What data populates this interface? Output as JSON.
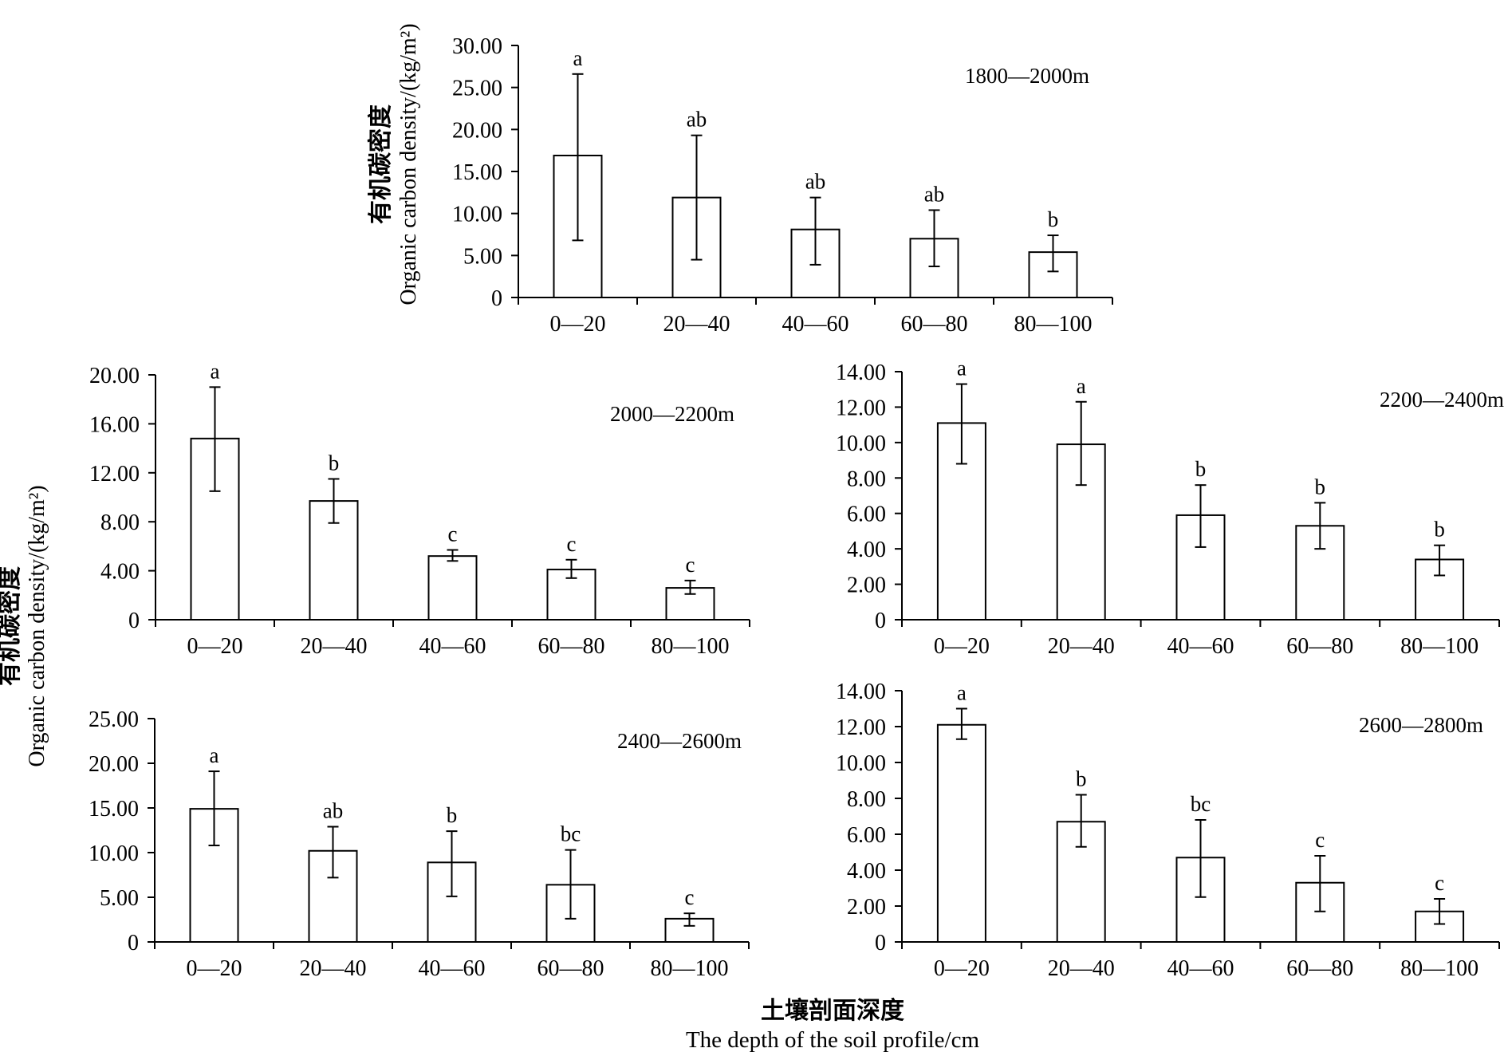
{
  "y_label_cn": "有机碳密度",
  "y_label_en": "Organic carbon density/(kg/m²)",
  "x_label_cn": "土壤剖面深度",
  "x_label_en": "The depth of the soil profile/cm",
  "colors": {
    "bar_fill": "#ffffff",
    "stroke": "#000000"
  },
  "chart_data": [
    {
      "type": "bar",
      "label": "1800—2000m",
      "categories": [
        "0—20",
        "20—40",
        "40—60",
        "60—80",
        "80—100"
      ],
      "values": [
        16.9,
        11.9,
        8.1,
        7.0,
        5.4
      ],
      "error_low": [
        6.8,
        4.5,
        3.9,
        3.7,
        3.1
      ],
      "error_high": [
        26.6,
        19.3,
        11.9,
        10.4,
        7.4
      ],
      "letters": [
        "a",
        "ab",
        "ab",
        "ab",
        "b"
      ],
      "ylim": [
        0,
        30
      ],
      "yticks": [
        0,
        5,
        10,
        15,
        20,
        25,
        30
      ],
      "ytick_labels": [
        "0",
        "5.00",
        "10.00",
        "15.00",
        "20.00",
        "25.00",
        "30.00"
      ]
    },
    {
      "type": "bar",
      "label": "2000—2200m",
      "categories": [
        "0—20",
        "20—40",
        "40—60",
        "60—80",
        "80—100"
      ],
      "values": [
        14.8,
        9.7,
        5.2,
        4.1,
        2.6
      ],
      "error_low": [
        10.5,
        7.9,
        4.8,
        3.4,
        2.1
      ],
      "error_high": [
        19.0,
        11.5,
        5.7,
        4.9,
        3.2
      ],
      "letters": [
        "a",
        "b",
        "c",
        "c",
        "c"
      ],
      "ylim": [
        0,
        20
      ],
      "yticks": [
        0,
        4,
        8,
        12,
        16,
        20
      ],
      "ytick_labels": [
        "0",
        "4.00",
        "8.00",
        "12.00",
        "16.00",
        "20.00"
      ]
    },
    {
      "type": "bar",
      "label": "2200—2400m",
      "categories": [
        "0—20",
        "20—40",
        "40—60",
        "60—80",
        "80—100"
      ],
      "values": [
        11.1,
        9.9,
        5.9,
        5.3,
        3.4
      ],
      "error_low": [
        8.8,
        7.6,
        4.1,
        4.0,
        2.5
      ],
      "error_high": [
        13.3,
        12.3,
        7.6,
        6.6,
        4.2
      ],
      "letters": [
        "a",
        "a",
        "b",
        "b",
        "b"
      ],
      "ylim": [
        0,
        14
      ],
      "yticks": [
        0,
        2,
        4,
        6,
        8,
        10,
        12,
        14
      ],
      "ytick_labels": [
        "0",
        "2.00",
        "4.00",
        "6.00",
        "8.00",
        "10.00",
        "12.00",
        "14.00"
      ]
    },
    {
      "type": "bar",
      "label": "2400—2600m",
      "categories": [
        "0—20",
        "20—40",
        "40—60",
        "60—80",
        "80—100"
      ],
      "values": [
        14.9,
        10.2,
        8.9,
        6.4,
        2.6
      ],
      "error_low": [
        10.8,
        7.2,
        5.1,
        2.6,
        1.8
      ],
      "error_high": [
        19.1,
        12.9,
        12.4,
        10.3,
        3.2
      ],
      "letters": [
        "a",
        "ab",
        "b",
        "bc",
        "c"
      ],
      "ylim": [
        0,
        25
      ],
      "yticks": [
        0,
        5,
        10,
        15,
        20,
        25
      ],
      "ytick_labels": [
        "0",
        "5.00",
        "10.00",
        "15.00",
        "20.00",
        "25.00"
      ]
    },
    {
      "type": "bar",
      "label": "2600—2800m",
      "categories": [
        "0—20",
        "20—40",
        "40—60",
        "60—80",
        "80—100"
      ],
      "values": [
        12.1,
        6.7,
        4.7,
        3.3,
        1.7
      ],
      "error_low": [
        11.3,
        5.3,
        2.5,
        1.7,
        1.0
      ],
      "error_high": [
        13.0,
        8.2,
        6.8,
        4.8,
        2.4
      ],
      "letters": [
        "a",
        "b",
        "bc",
        "c",
        "c"
      ],
      "ylim": [
        0,
        14
      ],
      "yticks": [
        0,
        2,
        4,
        6,
        8,
        10,
        12,
        14
      ],
      "ytick_labels": [
        "0",
        "2.00",
        "4.00",
        "6.00",
        "8.00",
        "10.00",
        "12.00",
        "14.00"
      ]
    }
  ]
}
